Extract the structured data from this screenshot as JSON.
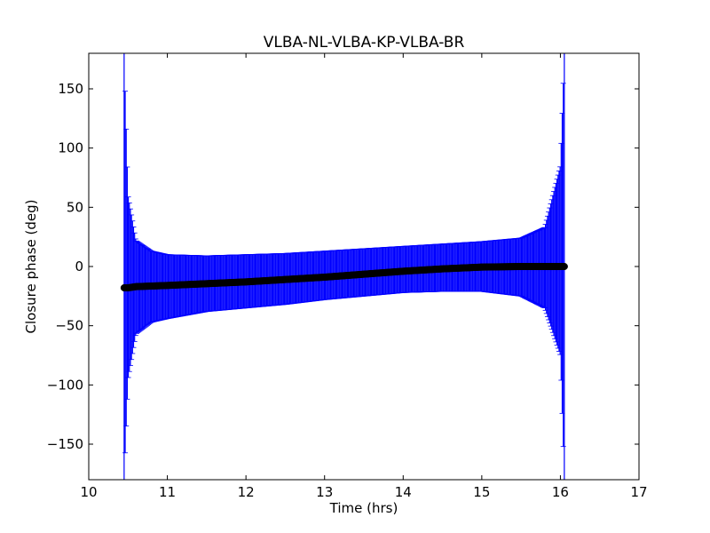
{
  "chart_data": {
    "type": "scatter",
    "title": "VLBA-NL-VLBA-KP-VLBA-BR",
    "xlabel": "Time (hrs)",
    "ylabel": "Closure phase (deg)",
    "xlim": [
      10,
      17
    ],
    "ylim": [
      -180,
      180
    ],
    "xticks": [
      10,
      11,
      12,
      13,
      14,
      15,
      16,
      17
    ],
    "yticks": [
      -150,
      -100,
      -50,
      0,
      50,
      100,
      150
    ],
    "xtick_labels": [
      "10",
      "11",
      "12",
      "13",
      "14",
      "15",
      "16",
      "17"
    ],
    "ytick_labels": [
      "−150",
      "−100",
      "−50",
      "0",
      "50",
      "100",
      "150"
    ],
    "grid": false,
    "series": [
      {
        "marker": "circle",
        "color": "#000000",
        "errorbar_color": "#0000ff",
        "x": [
          10.45,
          10.5,
          10.6,
          10.8,
          11.0,
          11.5,
          12.0,
          12.5,
          13.0,
          13.5,
          14.0,
          14.5,
          15.0,
          15.5,
          15.8,
          16.0,
          16.05
        ],
        "y": [
          -18,
          -18,
          -17,
          -16.5,
          -16,
          -14.5,
          -13,
          -11,
          -9,
          -6.5,
          -4,
          -2,
          -0.5,
          0,
          0,
          0,
          0
        ],
        "y_lower": [
          -180,
          -95,
          -57,
          -47,
          -44,
          -38,
          -35,
          -32,
          -28,
          -25,
          -22,
          -21,
          -21,
          -25,
          -35,
          -75,
          -180
        ],
        "y_upper": [
          180,
          60,
          22,
          13,
          10,
          9,
          10,
          11,
          13,
          15,
          17,
          19,
          21,
          24,
          33,
          85,
          180
        ]
      }
    ]
  }
}
